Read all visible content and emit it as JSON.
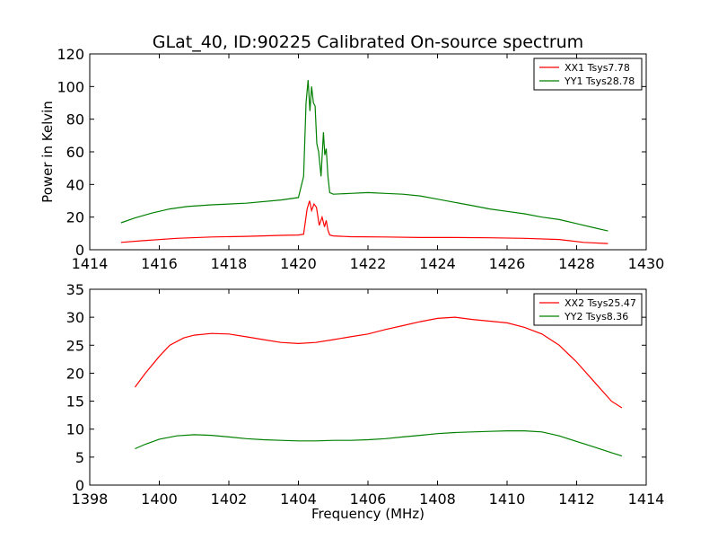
{
  "chart_data": [
    {
      "type": "line",
      "title": "GLat_40, ID:90225 Calibrated On-source spectrum",
      "xlabel": "",
      "ylabel": "Power in Kelvin",
      "xlim": [
        1414,
        1430
      ],
      "ylim": [
        0,
        120
      ],
      "xticks": [
        1414,
        1416,
        1418,
        1420,
        1422,
        1424,
        1426,
        1428,
        1430
      ],
      "yticks": [
        0,
        20,
        40,
        60,
        80,
        100,
        120
      ],
      "legend": "top-right",
      "grid": false,
      "series": [
        {
          "name": "XX1 Tsys7.78",
          "color": "#ff0000",
          "x": [
            1414.9,
            1415.5,
            1416.5,
            1417.5,
            1418.5,
            1419.5,
            1420.0,
            1420.15,
            1420.25,
            1420.32,
            1420.38,
            1420.45,
            1420.52,
            1420.6,
            1420.68,
            1420.75,
            1420.8,
            1420.85,
            1420.9,
            1421.0,
            1421.5,
            1422.5,
            1423.5,
            1424.5,
            1425.5,
            1426.5,
            1427.5,
            1428.2,
            1428.9
          ],
          "y": [
            4.5,
            5.5,
            7.0,
            7.8,
            8.2,
            8.8,
            9.0,
            9.5,
            25,
            30,
            24,
            28,
            26,
            15,
            20,
            14,
            18,
            12,
            9,
            8.5,
            8.0,
            7.8,
            7.5,
            7.5,
            7.3,
            7.0,
            6.3,
            4.5,
            3.8
          ]
        },
        {
          "name": "YY1 Tsys28.78",
          "color": "#008000",
          "x": [
            1414.9,
            1415.3,
            1415.8,
            1416.3,
            1416.8,
            1417.5,
            1418.5,
            1419.5,
            1420.0,
            1420.15,
            1420.22,
            1420.28,
            1420.33,
            1420.38,
            1420.43,
            1420.48,
            1420.53,
            1420.58,
            1420.65,
            1420.72,
            1420.76,
            1420.8,
            1420.85,
            1420.9,
            1421.0,
            1421.5,
            1422.0,
            1422.5,
            1423.0,
            1423.5,
            1424.0,
            1424.5,
            1425.0,
            1425.5,
            1426.0,
            1426.5,
            1427.0,
            1427.5,
            1428.0,
            1428.5,
            1428.9
          ],
          "y": [
            16.5,
            19.5,
            22.5,
            25.0,
            26.5,
            27.5,
            28.5,
            30.5,
            32.0,
            45,
            90,
            104,
            85,
            100,
            90,
            88,
            65,
            60,
            45,
            72,
            58,
            62,
            45,
            35,
            34,
            34.5,
            35,
            34.5,
            34,
            33,
            31,
            29,
            27,
            25,
            23.5,
            22,
            20,
            18.5,
            16,
            13.5,
            11.5
          ]
        }
      ]
    },
    {
      "type": "line",
      "title": "",
      "xlabel": "Frequency (MHz)",
      "ylabel": "",
      "xlim": [
        1398,
        1414
      ],
      "ylim": [
        0,
        35
      ],
      "xticks": [
        1398,
        1400,
        1402,
        1404,
        1406,
        1408,
        1410,
        1412,
        1414
      ],
      "yticks": [
        0,
        5,
        10,
        15,
        20,
        25,
        30,
        35
      ],
      "legend": "top-right",
      "grid": false,
      "series": [
        {
          "name": "XX2 Tsys25.47",
          "color": "#ff0000",
          "x": [
            1399.3,
            1399.6,
            1400.0,
            1400.3,
            1400.7,
            1401.0,
            1401.5,
            1402.0,
            1402.5,
            1403.0,
            1403.5,
            1404.0,
            1404.5,
            1405.0,
            1405.5,
            1406.0,
            1406.5,
            1407.0,
            1407.5,
            1408.0,
            1408.5,
            1409.0,
            1409.5,
            1410.0,
            1410.5,
            1411.0,
            1411.5,
            1412.0,
            1412.5,
            1413.0,
            1413.3
          ],
          "y": [
            17.5,
            20.0,
            23.0,
            25.0,
            26.3,
            26.8,
            27.1,
            27.0,
            26.5,
            26.0,
            25.5,
            25.3,
            25.5,
            26.0,
            26.5,
            27.0,
            27.8,
            28.5,
            29.2,
            29.8,
            30.0,
            29.6,
            29.3,
            29.0,
            28.2,
            27.0,
            25.0,
            22.0,
            18.5,
            15.0,
            13.8
          ]
        },
        {
          "name": "YY2 Tsys8.36",
          "color": "#008000",
          "x": [
            1399.3,
            1399.6,
            1400.0,
            1400.5,
            1401.0,
            1401.5,
            1402.0,
            1402.5,
            1403.0,
            1403.5,
            1404.0,
            1404.5,
            1405.0,
            1405.5,
            1406.0,
            1406.5,
            1407.0,
            1407.5,
            1408.0,
            1408.5,
            1409.0,
            1409.5,
            1410.0,
            1410.5,
            1411.0,
            1411.5,
            1412.0,
            1412.5,
            1413.0,
            1413.3
          ],
          "y": [
            6.5,
            7.3,
            8.2,
            8.8,
            9.0,
            8.9,
            8.6,
            8.3,
            8.1,
            8.0,
            7.9,
            7.9,
            8.0,
            8.0,
            8.1,
            8.3,
            8.6,
            8.9,
            9.2,
            9.4,
            9.5,
            9.6,
            9.7,
            9.7,
            9.5,
            8.8,
            7.8,
            6.8,
            5.8,
            5.2
          ]
        }
      ]
    }
  ]
}
